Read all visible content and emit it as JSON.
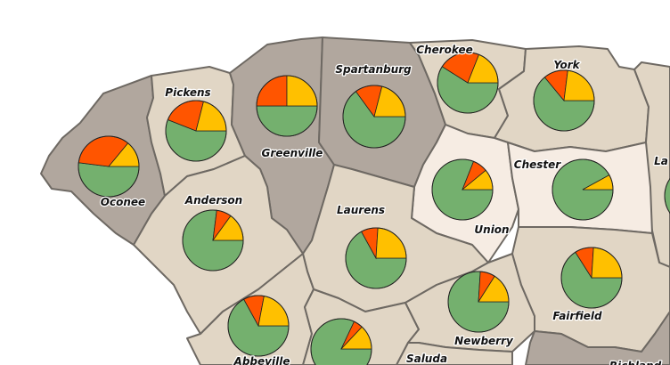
{
  "colors": {
    "county_dark": "#b1a79e",
    "county_mid": "#e1d6c5",
    "county_light": "#f6ece3",
    "border": "#6e6963",
    "slice_green": "#74b06e",
    "slice_orange": "#ff5500",
    "slice_yellow": "#ffc000"
  },
  "counties": [
    {
      "id": "oconee",
      "label": "Oconee",
      "shade": "county_dark",
      "pie": [
        52,
        34,
        14
      ]
    },
    {
      "id": "pickens",
      "label": "Pickens",
      "shade": "county_mid",
      "pie": [
        56,
        23,
        21
      ]
    },
    {
      "id": "greenville",
      "label": "Greenville",
      "shade": "county_dark",
      "pie": [
        50,
        25,
        25
      ]
    },
    {
      "id": "spartanburg",
      "label": "Spartanburg",
      "shade": "county_dark",
      "pie": [
        65,
        14,
        21
      ]
    },
    {
      "id": "cherokee",
      "label": "Cherokee",
      "shade": "county_mid",
      "pie": [
        59,
        22,
        19
      ]
    },
    {
      "id": "york",
      "label": "York",
      "shade": "county_mid",
      "pie": [
        64,
        13,
        23
      ]
    },
    {
      "id": "anderson",
      "label": "Anderson",
      "shade": "county_mid",
      "pie": [
        77,
        8,
        15
      ]
    },
    {
      "id": "laurens",
      "label": "Laurens",
      "shade": "county_mid",
      "pie": [
        67,
        9,
        24
      ]
    },
    {
      "id": "union",
      "label": "Union",
      "shade": "county_light",
      "pie": [
        81,
        8,
        11
      ]
    },
    {
      "id": "chester",
      "label": "Chester",
      "shade": "county_light",
      "pie": [
        92,
        0,
        8
      ]
    },
    {
      "id": "abbeville",
      "label": "Abbeville",
      "shade": "county_mid",
      "pie": [
        67,
        11,
        22
      ]
    },
    {
      "id": "greenwood",
      "label": "",
      "shade": "county_mid",
      "pie": [
        82,
        5,
        13
      ]
    },
    {
      "id": "newberry",
      "label": "Newberry",
      "shade": "county_mid",
      "pie": [
        76,
        8,
        16
      ]
    },
    {
      "id": "fairfield",
      "label": "Fairfield",
      "shade": "county_mid",
      "pie": [
        66,
        10,
        24
      ]
    },
    {
      "id": "saluda",
      "label": "Saluda",
      "shade": "county_mid",
      "pie": []
    },
    {
      "id": "richland",
      "label": "Richland",
      "shade": "county_dark",
      "pie": []
    },
    {
      "id": "lancaster",
      "label": "La",
      "shade": "county_mid",
      "pie": [
        80,
        8,
        12
      ]
    }
  ]
}
